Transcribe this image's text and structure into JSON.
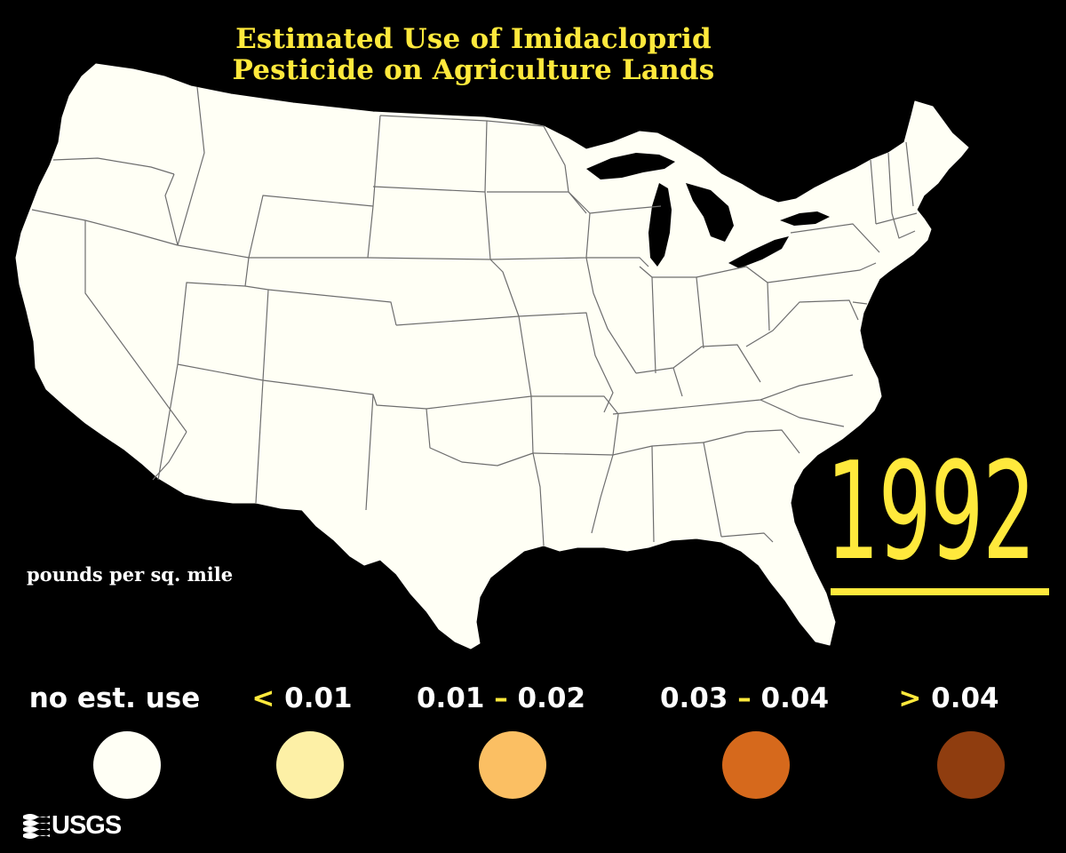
{
  "title": {
    "line1": "Estimated Use of Imidacloprid",
    "line2": "Pesticide on Agriculture Lands"
  },
  "year": "1992",
  "units_label": "pounds per sq. mile",
  "colors": {
    "accent": "#ffe93c",
    "background": "#000000",
    "land": "#fffff5",
    "state_border": "#6e6e6e"
  },
  "legend": [
    {
      "prefix": "",
      "low": "no est. use",
      "dash": "",
      "high": "",
      "color": "#fffff5"
    },
    {
      "prefix": "<",
      "low": "0.01",
      "dash": "",
      "high": "",
      "color": "#fdf0a6"
    },
    {
      "prefix": "",
      "low": "0.01",
      "dash": "–",
      "high": "0.02",
      "color": "#fbbf63"
    },
    {
      "prefix": "",
      "low": "0.03",
      "dash": "–",
      "high": "0.04",
      "color": "#d6691c"
    },
    {
      "prefix": ">",
      "low": "0.04",
      "dash": "",
      "high": "",
      "color": "#8f3d0f"
    }
  ],
  "map": {
    "region": "conterminous-united-states",
    "fill_class": "no est. use"
  },
  "logo": {
    "text": "USGS",
    "icon": "usgs-wave-icon"
  }
}
